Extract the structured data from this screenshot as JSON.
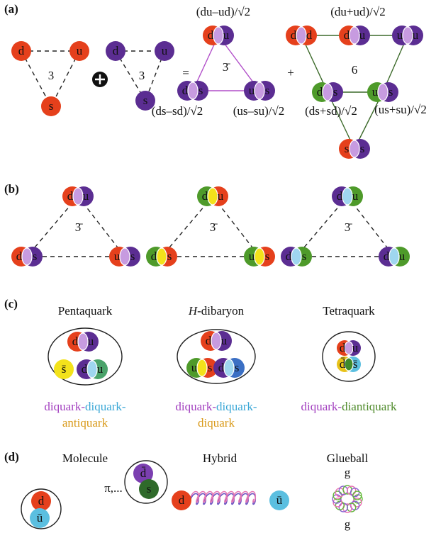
{
  "panel_a": {
    "label": "(a)",
    "triplet": {
      "quarks": [
        "d",
        "u",
        "s"
      ],
      "label": "3"
    },
    "triplet2": {
      "quarks": [
        "d",
        "u",
        "s"
      ],
      "label": "3"
    },
    "equals": "=",
    "plus": "+",
    "antitriplet": {
      "label": "3̄",
      "diquarks": [
        [
          "d",
          "u"
        ],
        [
          "d",
          "s"
        ],
        [
          "u",
          "s"
        ]
      ],
      "states": [
        "(du–ud)/√2",
        "(ds–sd)/√2",
        "(us–su)/√2"
      ]
    },
    "sextet": {
      "label": "6",
      "diquarks": [
        [
          "d",
          "d"
        ],
        [
          "d",
          "u"
        ],
        [
          "u",
          "u"
        ],
        [
          "d",
          "s"
        ],
        [
          "u",
          "s"
        ],
        [
          "s",
          "s"
        ]
      ],
      "states": [
        "(du+ud)/√2",
        "(ds+sd)/√2",
        "(us+su)/√2"
      ]
    }
  },
  "panel_b": {
    "label": "(b)",
    "triplets": [
      {
        "label": "3̄",
        "diquarks": [
          [
            "d",
            "u"
          ],
          [
            "d",
            "s"
          ],
          [
            "u",
            "s"
          ]
        ]
      },
      {
        "label": "3̄",
        "diquarks": [
          [
            "d",
            "u"
          ],
          [
            "d",
            "s"
          ],
          [
            "u",
            "s"
          ]
        ]
      },
      {
        "label": "3̄",
        "diquarks": [
          [
            "d",
            "u"
          ],
          [
            "d",
            "s"
          ],
          [
            "d",
            "u"
          ]
        ]
      }
    ]
  },
  "panel_c": {
    "label": "(c)",
    "items": [
      {
        "title": "Pentaquark",
        "quarks": [
          "d",
          "u",
          "s̄",
          "d",
          "u"
        ],
        "caption": [
          [
            {
              "text": "diquark-",
              "color": "#a23fbf"
            },
            {
              "text": "diquark-",
              "color": "#3aa7d6"
            }
          ],
          [
            {
              "text": "antiquark",
              "color": "#d99a1a"
            }
          ]
        ]
      },
      {
        "title": {
          "italic": "H",
          "rest": "-dibaryon"
        },
        "quarks": [
          "d",
          "u",
          "u",
          "s",
          "d",
          "s"
        ],
        "caption": [
          [
            {
              "text": "diquark-",
              "color": "#a23fbf"
            },
            {
              "text": "diquark-",
              "color": "#3aa7d6"
            }
          ],
          [
            {
              "text": "diquark",
              "color": "#d99a1a"
            }
          ]
        ]
      },
      {
        "title": "Tetraquark",
        "quarks": [
          "d",
          "u",
          "d̄",
          "s̄"
        ],
        "caption": [
          [
            {
              "text": "diquark-",
              "color": "#a23fbf"
            },
            {
              "text": "diantiquark",
              "color": "#4e8a2a"
            }
          ]
        ]
      }
    ]
  },
  "panel_d": {
    "label": "(d)",
    "molecule": {
      "title": "Molecule",
      "quarks": [
        "d",
        "ū",
        "d̄",
        "s"
      ],
      "exchange": "π,..."
    },
    "hybrid": {
      "title": "Hybrid",
      "quarks": [
        "d",
        "ū"
      ]
    },
    "glueball": {
      "title": "Glueball",
      "gluons": [
        "g",
        "g"
      ]
    }
  }
}
